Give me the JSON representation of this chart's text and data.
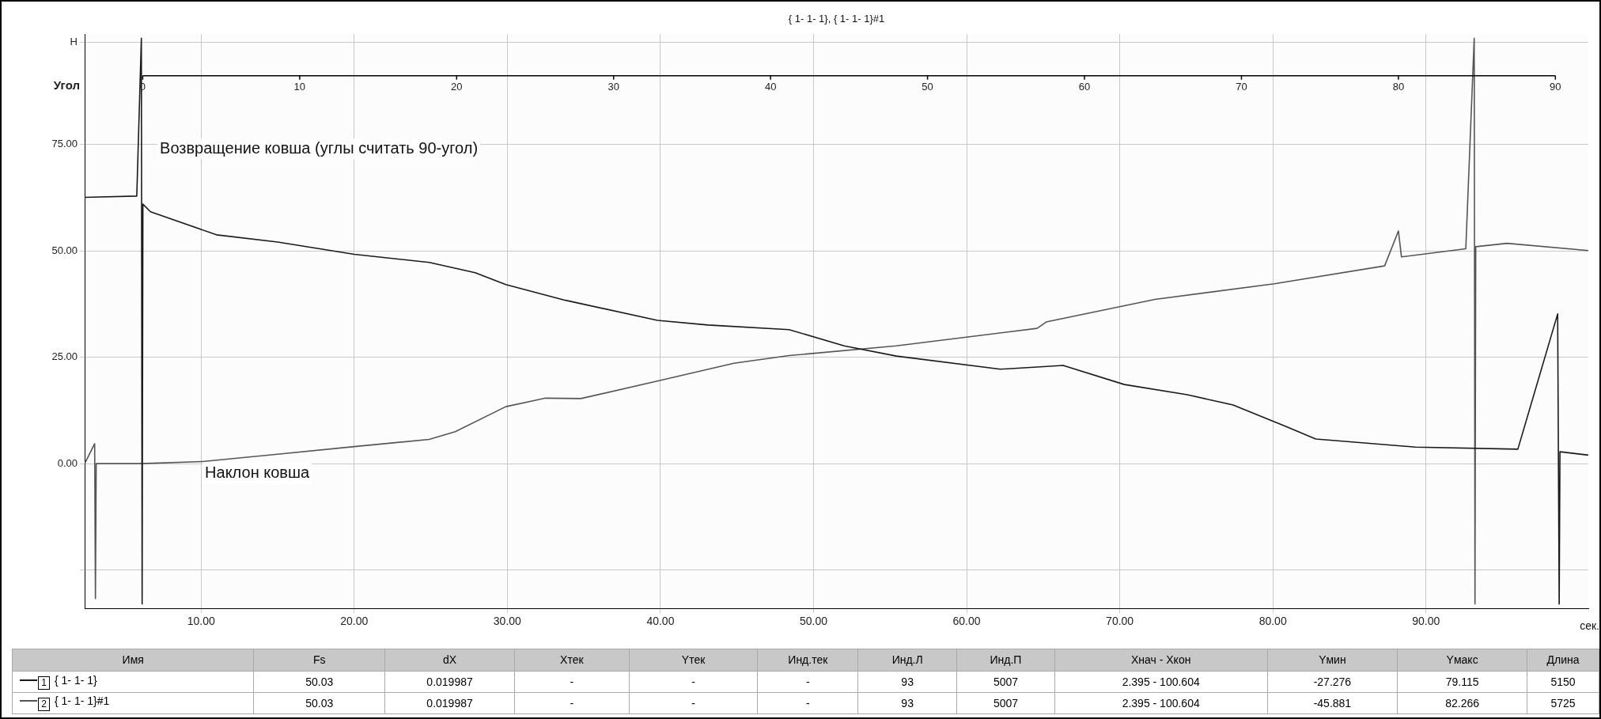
{
  "chart_data": [
    {
      "type": "line",
      "title": "{ 1- 1- 1}, { 1- 1- 1}#1",
      "xlabel": "сек.",
      "x2label": "Угол",
      "xlim": [
        2.395,
        100.604
      ],
      "xticks": [
        {
          "value": 10,
          "label": "10.00"
        },
        {
          "value": 20,
          "label": "20.00"
        },
        {
          "value": 30,
          "label": "30.00"
        },
        {
          "value": 40,
          "label": "40.00"
        },
        {
          "value": 50,
          "label": "50.00"
        },
        {
          "value": 60,
          "label": "60.00"
        },
        {
          "value": 70,
          "label": "70.00"
        },
        {
          "value": 80,
          "label": "80.00"
        },
        {
          "value": 90,
          "label": "90.00"
        }
      ],
      "x2lim": [
        -3.7,
        92.1
      ],
      "x2ticks": [
        0,
        10,
        20,
        30,
        40,
        50,
        60,
        70,
        80,
        90
      ],
      "ylim": [
        -34,
        101
      ],
      "yticks": [
        {
          "value": -25,
          "label": null
        },
        {
          "value": 0,
          "label": "0.00"
        },
        {
          "value": 25,
          "label": "25.00"
        },
        {
          "value": 50,
          "label": "50.00"
        },
        {
          "value": 75,
          "label": "75.00"
        },
        {
          "value": 99,
          "label": "H"
        }
      ],
      "grid": true,
      "legend": "bottom",
      "marker": "none",
      "line_style": "solid",
      "annotations": [
        "Возвращение ковша (углы считать 90-угол)",
        "Наклон ковша"
      ],
      "series": [
        {
          "name": "{ 1- 1- 1}",
          "color": "#1a1a1a",
          "x": [
            2.4,
            5.8,
            6.1,
            6.15,
            6.2,
            6.7,
            11.0,
            15.0,
            20.0,
            24.9,
            27.9,
            29.9,
            33.8,
            39.8,
            43.1,
            48.4,
            52.0,
            55.4,
            62.2,
            66.3,
            70.3,
            74.4,
            77.4,
            80.8,
            82.8,
            89.3,
            96.0,
            98.6,
            98.7,
            98.75,
            100.6
          ],
          "values": [
            62.6,
            62.9,
            100,
            -33,
            61,
            59.2,
            53.8,
            52.1,
            49.2,
            47.3,
            44.9,
            42.1,
            38.4,
            33.7,
            32.6,
            31.5,
            27.7,
            25.3,
            22.2,
            23.1,
            18.6,
            16.2,
            13.8,
            8.8,
            5.8,
            3.9,
            3.4,
            35.2,
            -33,
            2.8,
            2.0
          ]
        },
        {
          "name": "{ 1- 1- 1}#1",
          "color": "#555555",
          "x": [
            2.4,
            3.05,
            3.1,
            3.15,
            6.1,
            10.1,
            15.0,
            20.0,
            24.9,
            26.6,
            29.9,
            32.5,
            34.8,
            39.8,
            44.8,
            48.4,
            55.4,
            64.6,
            65.2,
            72.3,
            80.1,
            87.3,
            88.2,
            88.4,
            92.6,
            93.15,
            93.2,
            93.25,
            95.3,
            100.6
          ],
          "values": [
            0,
            4.7,
            -31.7,
            0,
            0,
            0.5,
            2.2,
            4.0,
            5.7,
            7.5,
            13.4,
            15.4,
            15.3,
            19.4,
            23.6,
            25.4,
            27.7,
            31.8,
            33.3,
            38.6,
            42.3,
            46.5,
            54.7,
            48.6,
            50.5,
            100,
            -33,
            51,
            51.8,
            50.1
          ]
        }
      ]
    },
    {
      "type": "other",
      "categories": [
        "Имя",
        "Fs",
        "dX",
        "Xтек",
        "Yтек",
        "Инд.тек",
        "Инд.Л",
        "Инд.П",
        "Xнач - Xкон",
        "Yмин",
        "Yмакс",
        "Длина"
      ],
      "cell_labels": [
        [
          "1",
          "50.03",
          "0.019987",
          "-",
          "-",
          "-",
          "93",
          "5007",
          "2.395 - 100.604",
          "-27.276",
          "79.115",
          "5150"
        ],
        [
          "2",
          "50.03",
          "0.019987",
          "-",
          "-",
          "-",
          "93",
          "5007",
          "2.395 - 100.604",
          "-45.881",
          "82.266",
          "5725"
        ]
      ]
    }
  ]
}
